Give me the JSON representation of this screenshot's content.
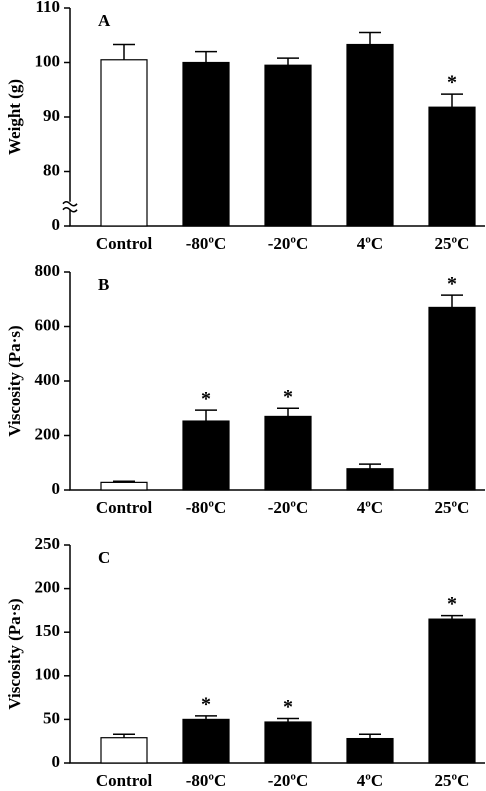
{
  "chart_data": [
    {
      "type": "bar",
      "title": "A",
      "y_label": "Weight (g)",
      "categories": [
        "Control",
        "-80ºC",
        "-20ºC",
        "4ºC",
        "25ºC"
      ],
      "values": [
        100.5,
        100,
        99.5,
        103.3,
        91.8
      ],
      "errors": [
        2.8,
        2,
        1.3,
        2.2,
        2.4
      ],
      "colors": [
        "#ffffff",
        "#000000",
        "#000000",
        "#000000",
        "#000000"
      ],
      "marker_text": "*",
      "significant": [
        false,
        false,
        false,
        false,
        true
      ],
      "ylim": [
        0,
        110
      ],
      "yticks": [
        0,
        80,
        90,
        100,
        110
      ],
      "axis_break": [
        0,
        80
      ]
    },
    {
      "type": "bar",
      "title": "B",
      "y_label": "Viscosity (Pa·s)",
      "categories": [
        "Control",
        "-80ºC",
        "-20ºC",
        "4ºC",
        "25ºC"
      ],
      "values": [
        28,
        253,
        270,
        78,
        670
      ],
      "errors": [
        4,
        40,
        30,
        17,
        45
      ],
      "colors": [
        "#ffffff",
        "#000000",
        "#000000",
        "#000000",
        "#000000"
      ],
      "marker_text": "*",
      "significant": [
        false,
        true,
        true,
        false,
        true
      ],
      "ylim": [
        0,
        800
      ],
      "yticks": [
        0,
        200,
        400,
        600,
        800
      ]
    },
    {
      "type": "bar",
      "title": "C",
      "y_label": "Viscosity (Pa·s)",
      "categories": [
        "Control",
        "-80ºC",
        "-20ºC",
        "4ºC",
        "25ºC"
      ],
      "values": [
        29,
        50,
        47,
        28,
        165
      ],
      "errors": [
        4,
        4,
        4,
        5,
        4
      ],
      "colors": [
        "#ffffff",
        "#000000",
        "#000000",
        "#000000",
        "#000000"
      ],
      "marker_text": "*",
      "significant": [
        false,
        true,
        true,
        false,
        true
      ],
      "ylim": [
        0,
        250
      ],
      "yticks": [
        0,
        50,
        100,
        150,
        200,
        250
      ]
    }
  ]
}
